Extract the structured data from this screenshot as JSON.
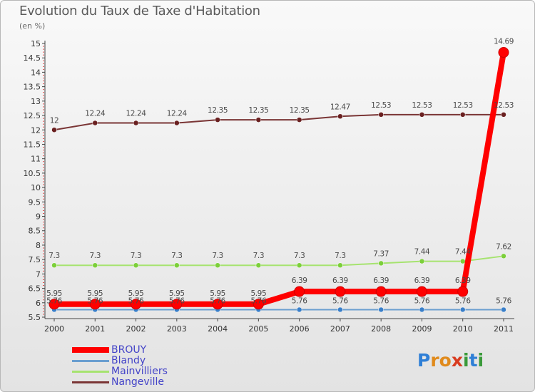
{
  "header": {
    "title": "Evolution du Taux de Taxe d'Habitation",
    "subtitle": "(en %)"
  },
  "logo": {
    "text": "Proxiti",
    "letter_colors": [
      "#2f7fd6",
      "#e08a1c",
      "#e08a1c",
      "#d83b1f",
      "#3a9a3a",
      "#2f7fd6",
      "#3a9a3a"
    ]
  },
  "chart_data": {
    "type": "line",
    "title": "Evolution du Taux de Taxe d'Habitation",
    "ylabel": "(en %)",
    "xlabel": "",
    "categories": [
      "2000",
      "2001",
      "2002",
      "2003",
      "2004",
      "2005",
      "2006",
      "2007",
      "2008",
      "2009",
      "2010",
      "2011"
    ],
    "ylim": [
      5.5,
      15
    ],
    "yticks": [
      "5.5",
      "6",
      "6.5",
      "7",
      "7.5",
      "8",
      "8.5",
      "9",
      "9.5",
      "10",
      "10.5",
      "11",
      "11.5",
      "12",
      "12.5",
      "13",
      "13.5",
      "14",
      "14.5",
      "15"
    ],
    "grid": false,
    "legend_position": "bottom-left",
    "series": [
      {
        "name": "BROUY",
        "color": "#ff0000",
        "emphasis": true,
        "values": [
          5.95,
          5.95,
          5.95,
          5.95,
          5.95,
          5.95,
          6.39,
          6.39,
          6.39,
          6.39,
          6.39,
          14.69
        ],
        "labels": [
          "5.95",
          "5.95",
          "5.95",
          "5.95",
          "5.95",
          "5.95",
          "6.39",
          "6.39",
          "6.39",
          "6.39",
          "6.39",
          "14.69"
        ]
      },
      {
        "name": "Blandy",
        "color": "#6a9ed0",
        "marker_color": "#3a7fc9",
        "emphasis": false,
        "values": [
          5.76,
          5.76,
          5.76,
          5.76,
          5.76,
          5.76,
          5.76,
          5.76,
          5.76,
          5.76,
          5.76,
          5.76
        ],
        "labels": [
          "5.76",
          "5.76",
          "5.76",
          "5.76",
          "5.76",
          "5.76",
          "5.76",
          "5.76",
          "5.76",
          "5.76",
          "5.76",
          "5.76"
        ]
      },
      {
        "name": "Mainvilliers",
        "color": "#a6e36f",
        "marker_color": "#7ccf3a",
        "emphasis": false,
        "values": [
          7.3,
          7.3,
          7.3,
          7.3,
          7.3,
          7.3,
          7.3,
          7.3,
          7.37,
          7.44,
          7.44,
          7.62
        ],
        "labels": [
          "7.3",
          "7.3",
          "7.3",
          "7.3",
          "7.3",
          "7.3",
          "7.3",
          "7.3",
          "7.37",
          "7.44",
          "7.44",
          "7.62"
        ]
      },
      {
        "name": "Nangeville",
        "color": "#7a3535",
        "marker_color": "#6a2020",
        "emphasis": false,
        "values": [
          12,
          12.24,
          12.24,
          12.24,
          12.35,
          12.35,
          12.35,
          12.47,
          12.53,
          12.53,
          12.53,
          12.53
        ],
        "labels": [
          "12",
          "12.24",
          "12.24",
          "12.24",
          "12.35",
          "12.35",
          "12.35",
          "12.47",
          "12.53",
          "12.53",
          "12.53",
          "12.53"
        ]
      }
    ]
  }
}
